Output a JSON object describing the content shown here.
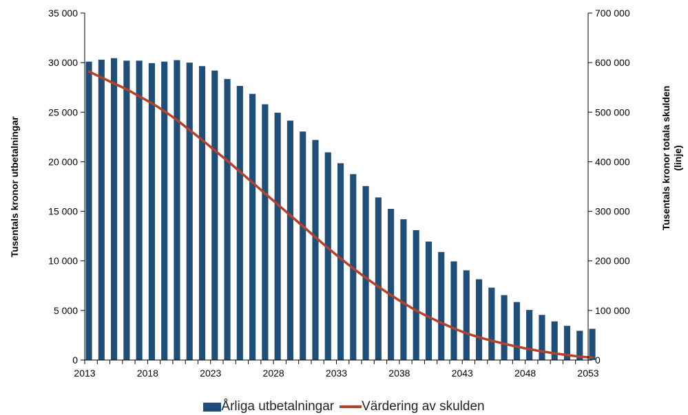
{
  "chart_data": {
    "type": "bar+line",
    "x": [
      2013,
      2014,
      2015,
      2016,
      2017,
      2018,
      2019,
      2020,
      2021,
      2022,
      2023,
      2024,
      2025,
      2026,
      2027,
      2028,
      2029,
      2030,
      2031,
      2032,
      2033,
      2034,
      2035,
      2036,
      2037,
      2038,
      2039,
      2040,
      2041,
      2042,
      2043,
      2044,
      2045,
      2046,
      2047,
      2048,
      2049,
      2050,
      2051,
      2052,
      2053
    ],
    "x_tick_labels": [
      "2013",
      "2018",
      "2023",
      "2028",
      "2033",
      "2038",
      "2043",
      "2048",
      "2053"
    ],
    "series": [
      {
        "name": "Årliga utbetalningar",
        "type": "bar",
        "axis": "left",
        "color": "#1F4E79",
        "values": [
          30100,
          30300,
          30450,
          30200,
          30200,
          29950,
          30100,
          30250,
          30000,
          29650,
          29200,
          28350,
          27650,
          26850,
          25800,
          24950,
          24150,
          23050,
          22200,
          20950,
          19850,
          18750,
          17550,
          16400,
          15250,
          14200,
          13100,
          11950,
          10900,
          9950,
          9050,
          8150,
          7300,
          6550,
          5850,
          5050,
          4550,
          3900,
          3450,
          2950,
          3150
        ]
      },
      {
        "name": "Värdering av skulden",
        "type": "line",
        "axis": "right",
        "color": "#B5412B",
        "values": [
          582000,
          570000,
          558000,
          546000,
          532000,
          518000,
          502000,
          484000,
          464000,
          444000,
          423000,
          402000,
          380000,
          358000,
          336000,
          314000,
          292000,
          270000,
          248000,
          226000,
          205000,
          185000,
          166000,
          148000,
          131000,
          115000,
          100000,
          87000,
          75000,
          64000,
          54000,
          46000,
          39000,
          33000,
          27000,
          22000,
          17500,
          13500,
          10000,
          7000,
          5000
        ]
      }
    ],
    "y_left": {
      "label": "Tusentals kronor utbetalningar",
      "ylim": [
        0,
        35000
      ],
      "ticks": [
        "0",
        "5 000",
        "10 000",
        "15 000",
        "20 000",
        "25 000",
        "30 000",
        "35 000"
      ]
    },
    "y_right": {
      "label_line1": "Tusentals kronor totala skulden",
      "label_line2": "(linje)",
      "ylim": [
        0,
        700000
      ],
      "ticks": [
        "0",
        "100 000",
        "200 000",
        "300 000",
        "400 000",
        "500 000",
        "600 000",
        "700 000"
      ]
    },
    "grid": false,
    "legend_position": "bottom"
  }
}
